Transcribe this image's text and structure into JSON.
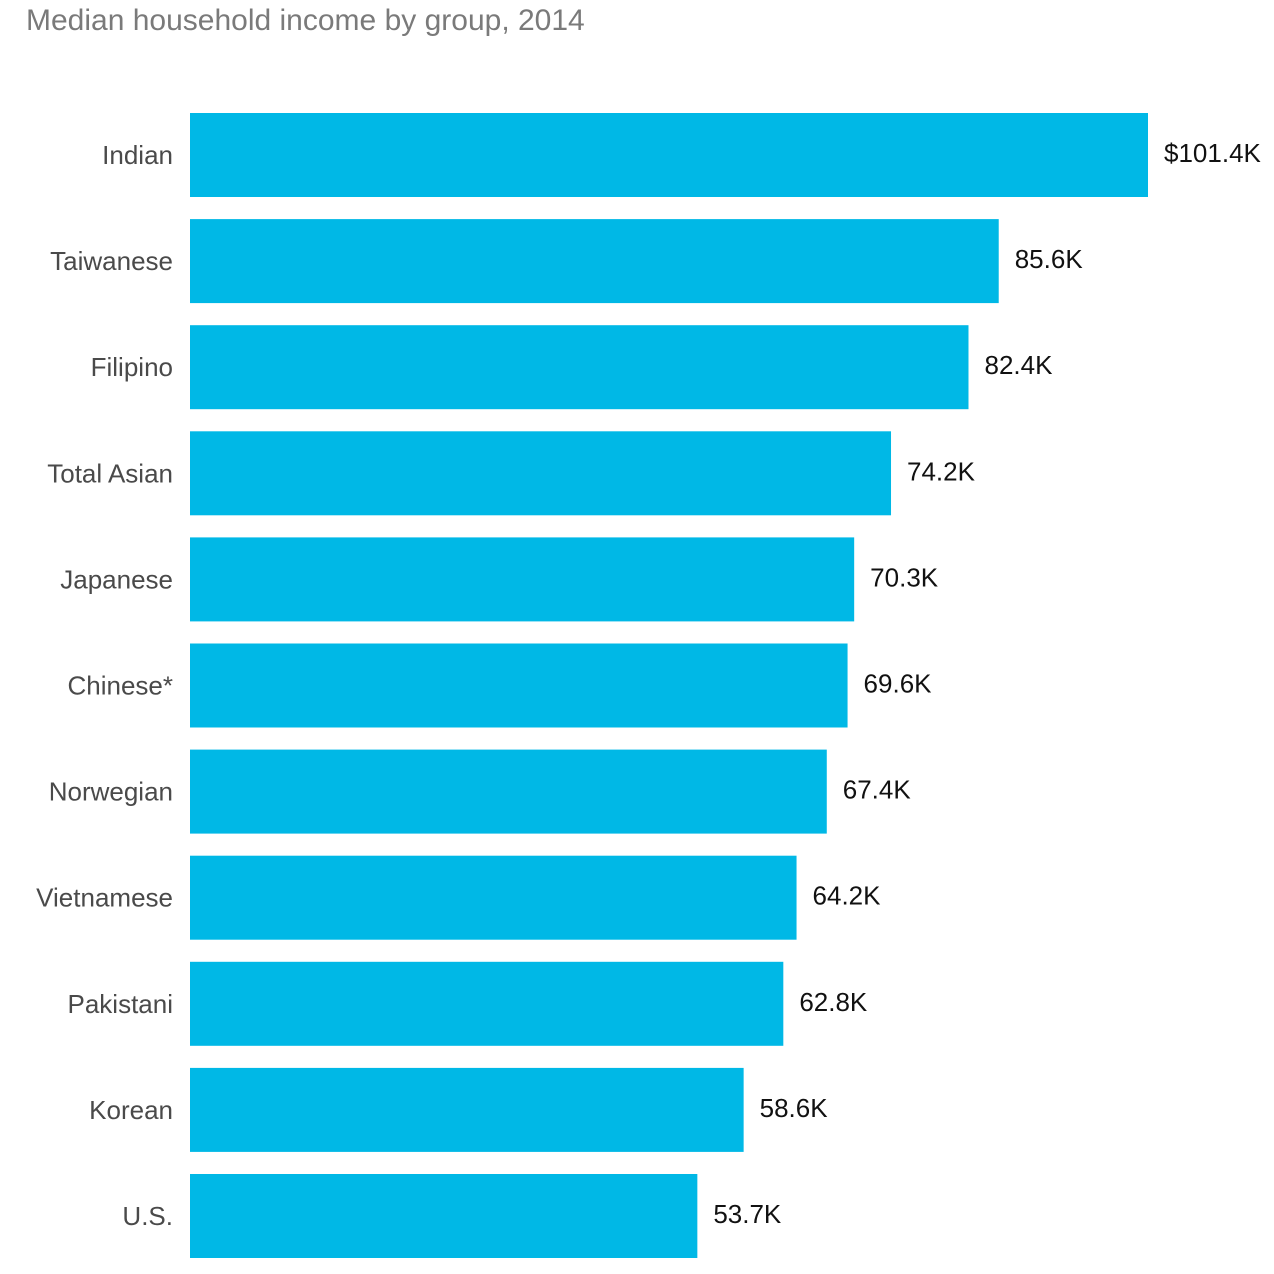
{
  "chart_data": {
    "type": "bar",
    "orientation": "horizontal",
    "title": "Median household income by group, 2014",
    "xlabel": "",
    "ylabel": "",
    "unit": "thousand USD",
    "xlim": [
      0,
      101.4
    ],
    "grid": false,
    "legend": "none",
    "bar_color": "#00b8e6",
    "categories": [
      "Indian",
      "Taiwanese",
      "Filipino",
      "Total Asian",
      "Japanese",
      "Chinese*",
      "Norwegian",
      "Vietnamese",
      "Pakistani",
      "Korean",
      "U.S."
    ],
    "values": [
      101.4,
      85.6,
      82.4,
      74.2,
      70.3,
      69.6,
      67.4,
      64.2,
      62.8,
      58.6,
      53.7
    ],
    "value_labels": [
      "$101.4K",
      "85.6K",
      "82.4K",
      "74.2K",
      "70.3K",
      "69.6K",
      "67.4K",
      "64.2K",
      "62.8K",
      "58.6K",
      "53.7K"
    ]
  }
}
